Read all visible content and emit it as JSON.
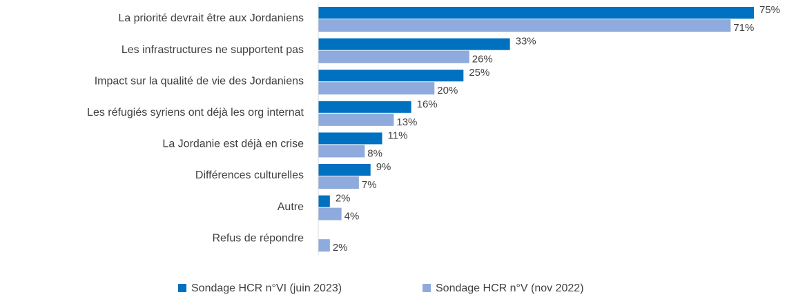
{
  "chart_data": {
    "type": "bar",
    "orientation": "horizontal",
    "categories": [
      "La priorité devrait être aux Jordaniens",
      "Les infrastructures ne supportent pas",
      "Impact sur la qualité de vie des Jordaniens",
      "Les réfugiés syriens ont déjà les org internat",
      "La Jordanie est déjà en crise",
      "Différences culturelles",
      "Autre",
      "Refus de répondre"
    ],
    "series": [
      {
        "name": "Sondage HCR n°VI (juin 2023)",
        "color": "#0070c0",
        "values": [
          75,
          33,
          25,
          16,
          11,
          9,
          2,
          null
        ],
        "value_labels": [
          "75%",
          "33%",
          "25%",
          "16%",
          "11%",
          "9%",
          "2%",
          null
        ]
      },
      {
        "name": "Sondage HCR n°V (nov 2022)",
        "color": "#8faadc",
        "values": [
          71,
          26,
          20,
          13,
          8,
          7,
          4,
          2
        ],
        "value_labels": [
          "71%",
          "26%",
          "20%",
          "13%",
          "8%",
          "7%",
          "4%",
          "2%"
        ]
      }
    ],
    "legend": "bottom"
  }
}
